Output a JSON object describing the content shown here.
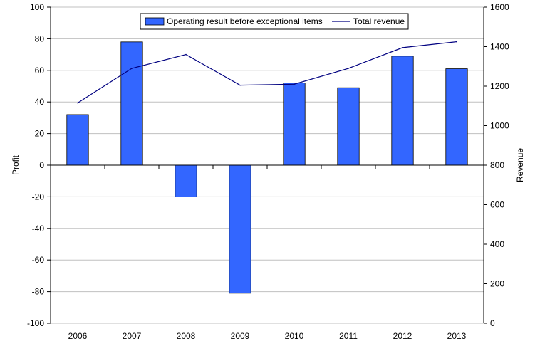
{
  "chart_data": {
    "type": "bar",
    "categories": [
      "2006",
      "2007",
      "2008",
      "2009",
      "2010",
      "2011",
      "2012",
      "2013"
    ],
    "series": [
      {
        "name": "Operating result before exceptional items",
        "type": "bar",
        "axis": "left",
        "color": "#3366ff",
        "values": [
          32,
          78,
          -20,
          -81,
          52,
          49,
          69,
          61
        ]
      },
      {
        "name": "Total revenue",
        "type": "line",
        "axis": "right",
        "color": "#000080",
        "values": [
          1115,
          1290,
          1360,
          1205,
          1210,
          1290,
          1395,
          1425
        ]
      }
    ],
    "ylabel": "Profit",
    "y2label": "Revenue",
    "ylim": [
      -100,
      100
    ],
    "y2lim": [
      0,
      1600
    ],
    "yticks": [
      "100",
      "80",
      "60",
      "40",
      "20",
      "0",
      "-20",
      "-40",
      "-60",
      "-80",
      "-100"
    ],
    "y2ticks": [
      "1600",
      "1400",
      "1200",
      "1000",
      "800",
      "600",
      "400",
      "200",
      "0"
    ],
    "grid": "horizontal",
    "legend": "top-center"
  }
}
